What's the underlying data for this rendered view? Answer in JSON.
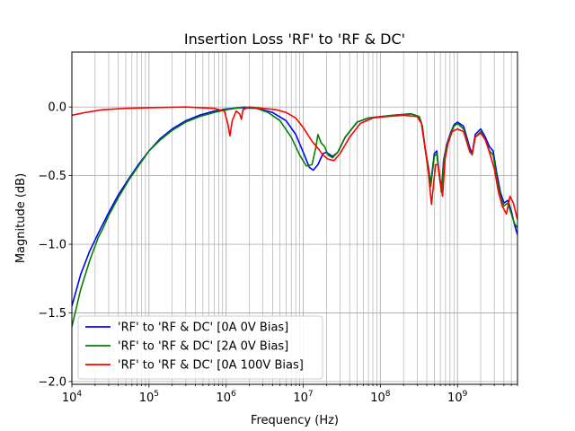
{
  "chart_data": {
    "type": "line",
    "title": "Insertion Loss 'RF' to 'RF & DC'",
    "xlabel": "Frequency (Hz)",
    "ylabel": "Magnitude (dB)",
    "xscale": "log",
    "xlim": [
      10000,
      6000000000
    ],
    "ylim": [
      -2.02,
      0.4
    ],
    "grid": true,
    "legend_position": "lower-left",
    "xticks": [
      {
        "value": 10000,
        "base": "10",
        "exp": "4"
      },
      {
        "value": 100000,
        "base": "10",
        "exp": "5"
      },
      {
        "value": 1000000,
        "base": "10",
        "exp": "6"
      },
      {
        "value": 10000000,
        "base": "10",
        "exp": "7"
      },
      {
        "value": 100000000,
        "base": "10",
        "exp": "8"
      },
      {
        "value": 1000000000,
        "base": "10",
        "exp": "9"
      }
    ],
    "yticks": [
      {
        "value": 0.0,
        "label": "0.0"
      },
      {
        "value": -0.5,
        "label": "−0.5"
      },
      {
        "value": -1.0,
        "label": "−1.0"
      },
      {
        "value": -1.5,
        "label": "−1.5"
      },
      {
        "value": -2.0,
        "label": "−2.0"
      }
    ],
    "series": [
      {
        "name": "'RF' to 'RF & DC' [0A 0V Bias]",
        "color": "#0000ff",
        "points": [
          [
            10000,
            -1.45
          ],
          [
            13000,
            -1.22
          ],
          [
            17000,
            -1.05
          ],
          [
            22000,
            -0.92
          ],
          [
            30000,
            -0.77
          ],
          [
            40000,
            -0.64
          ],
          [
            55000,
            -0.52
          ],
          [
            75000,
            -0.41
          ],
          [
            100000,
            -0.32
          ],
          [
            140000,
            -0.23
          ],
          [
            200000,
            -0.16
          ],
          [
            300000,
            -0.1
          ],
          [
            450000,
            -0.06
          ],
          [
            700000,
            -0.03
          ],
          [
            1000000,
            -0.015
          ],
          [
            1500000,
            -0.005
          ],
          [
            2500000,
            -0.01
          ],
          [
            4000000,
            -0.04
          ],
          [
            6000000,
            -0.1
          ],
          [
            8000000,
            -0.2
          ],
          [
            10000000,
            -0.33
          ],
          [
            12000000,
            -0.44
          ],
          [
            13500000,
            -0.46
          ],
          [
            15500000,
            -0.42
          ],
          [
            18000000,
            -0.34
          ],
          [
            20000000,
            -0.33
          ],
          [
            24000000,
            -0.36
          ],
          [
            28000000,
            -0.33
          ],
          [
            35000000,
            -0.22
          ],
          [
            50000000,
            -0.11
          ],
          [
            70000000,
            -0.08
          ],
          [
            100000000,
            -0.07
          ],
          [
            150000000,
            -0.06
          ],
          [
            250000000,
            -0.05
          ],
          [
            320000000,
            -0.07
          ],
          [
            350000000,
            -0.14
          ],
          [
            380000000,
            -0.3
          ],
          [
            420000000,
            -0.44
          ],
          [
            450000000,
            -0.56
          ],
          [
            500000000,
            -0.34
          ],
          [
            540000000,
            -0.32
          ],
          [
            570000000,
            -0.45
          ],
          [
            620000000,
            -0.6
          ],
          [
            660000000,
            -0.39
          ],
          [
            720000000,
            -0.28
          ],
          [
            800000000,
            -0.2
          ],
          [
            900000000,
            -0.13
          ],
          [
            1000000000,
            -0.11
          ],
          [
            1200000000,
            -0.14
          ],
          [
            1450000000,
            -0.3
          ],
          [
            1550000000,
            -0.34
          ],
          [
            1700000000,
            -0.2
          ],
          [
            2000000000,
            -0.16
          ],
          [
            2300000000,
            -0.22
          ],
          [
            2600000000,
            -0.29
          ],
          [
            2900000000,
            -0.32
          ],
          [
            3200000000,
            -0.47
          ],
          [
            3600000000,
            -0.62
          ],
          [
            4000000000,
            -0.7
          ],
          [
            4500000000,
            -0.68
          ],
          [
            5000000000,
            -0.76
          ],
          [
            5500000000,
            -0.86
          ],
          [
            6000000000,
            -0.93
          ]
        ]
      },
      {
        "name": "'RF' to 'RF & DC' [2A 0V Bias]",
        "color": "#008000",
        "points": [
          [
            10000,
            -1.6
          ],
          [
            13000,
            -1.33
          ],
          [
            17000,
            -1.12
          ],
          [
            22000,
            -0.95
          ],
          [
            25000,
            -0.89
          ],
          [
            30000,
            -0.79
          ],
          [
            40000,
            -0.66
          ],
          [
            55000,
            -0.53
          ],
          [
            75000,
            -0.42
          ],
          [
            100000,
            -0.32
          ],
          [
            140000,
            -0.24
          ],
          [
            200000,
            -0.17
          ],
          [
            300000,
            -0.11
          ],
          [
            450000,
            -0.07
          ],
          [
            700000,
            -0.04
          ],
          [
            1000000,
            -0.02
          ],
          [
            1300000,
            -0.01
          ],
          [
            1700000,
            0.0
          ],
          [
            2500000,
            -0.01
          ],
          [
            3500000,
            -0.04
          ],
          [
            5000000,
            -0.1
          ],
          [
            7000000,
            -0.22
          ],
          [
            9000000,
            -0.35
          ],
          [
            11000000,
            -0.43
          ],
          [
            13000000,
            -0.42
          ],
          [
            14500000,
            -0.3
          ],
          [
            15500000,
            -0.2
          ],
          [
            17000000,
            -0.26
          ],
          [
            19000000,
            -0.29
          ],
          [
            21000000,
            -0.35
          ],
          [
            24000000,
            -0.37
          ],
          [
            28000000,
            -0.33
          ],
          [
            35000000,
            -0.22
          ],
          [
            50000000,
            -0.11
          ],
          [
            70000000,
            -0.08
          ],
          [
            100000000,
            -0.07
          ],
          [
            150000000,
            -0.06
          ],
          [
            250000000,
            -0.05
          ],
          [
            320000000,
            -0.07
          ],
          [
            350000000,
            -0.14
          ],
          [
            380000000,
            -0.3
          ],
          [
            420000000,
            -0.44
          ],
          [
            450000000,
            -0.58
          ],
          [
            500000000,
            -0.36
          ],
          [
            540000000,
            -0.34
          ],
          [
            570000000,
            -0.47
          ],
          [
            620000000,
            -0.62
          ],
          [
            660000000,
            -0.4
          ],
          [
            720000000,
            -0.29
          ],
          [
            800000000,
            -0.21
          ],
          [
            900000000,
            -0.14
          ],
          [
            1000000000,
            -0.12
          ],
          [
            1200000000,
            -0.16
          ],
          [
            1450000000,
            -0.32
          ],
          [
            1550000000,
            -0.35
          ],
          [
            1700000000,
            -0.22
          ],
          [
            2000000000,
            -0.18
          ],
          [
            2300000000,
            -0.24
          ],
          [
            2600000000,
            -0.32
          ],
          [
            2900000000,
            -0.35
          ],
          [
            3200000000,
            -0.5
          ],
          [
            3600000000,
            -0.65
          ],
          [
            4000000000,
            -0.72
          ],
          [
            4500000000,
            -0.7
          ],
          [
            5000000000,
            -0.78
          ],
          [
            5500000000,
            -0.85
          ],
          [
            6000000000,
            -0.88
          ]
        ]
      },
      {
        "name": "'RF' to 'RF & DC' [0A 100V Bias]",
        "color": "#ff0000",
        "points": [
          [
            10000,
            -0.06
          ],
          [
            15000,
            -0.04
          ],
          [
            25000,
            -0.02
          ],
          [
            50000,
            -0.01
          ],
          [
            100000,
            -0.005
          ],
          [
            300000,
            0.0
          ],
          [
            700000,
            -0.01
          ],
          [
            950000,
            -0.03
          ],
          [
            1050000,
            -0.12
          ],
          [
            1120000,
            -0.21
          ],
          [
            1200000,
            -0.1
          ],
          [
            1350000,
            -0.03
          ],
          [
            1500000,
            -0.05
          ],
          [
            1580000,
            -0.09
          ],
          [
            1650000,
            -0.02
          ],
          [
            2000000,
            0.0
          ],
          [
            3000000,
            -0.01
          ],
          [
            4500000,
            -0.02
          ],
          [
            6000000,
            -0.04
          ],
          [
            8000000,
            -0.08
          ],
          [
            10000000,
            -0.15
          ],
          [
            13000000,
            -0.25
          ],
          [
            16000000,
            -0.31
          ],
          [
            18000000,
            -0.35
          ],
          [
            21000000,
            -0.38
          ],
          [
            25000000,
            -0.39
          ],
          [
            30000000,
            -0.34
          ],
          [
            40000000,
            -0.22
          ],
          [
            55000000,
            -0.12
          ],
          [
            80000000,
            -0.08
          ],
          [
            120000000,
            -0.07
          ],
          [
            200000000,
            -0.06
          ],
          [
            300000000,
            -0.07
          ],
          [
            340000000,
            -0.12
          ],
          [
            380000000,
            -0.3
          ],
          [
            420000000,
            -0.48
          ],
          [
            460000000,
            -0.71
          ],
          [
            520000000,
            -0.42
          ],
          [
            560000000,
            -0.42
          ],
          [
            600000000,
            -0.55
          ],
          [
            640000000,
            -0.65
          ],
          [
            690000000,
            -0.38
          ],
          [
            750000000,
            -0.27
          ],
          [
            850000000,
            -0.18
          ],
          [
            1000000000,
            -0.16
          ],
          [
            1200000000,
            -0.18
          ],
          [
            1450000000,
            -0.33
          ],
          [
            1550000000,
            -0.34
          ],
          [
            1700000000,
            -0.22
          ],
          [
            2000000000,
            -0.19
          ],
          [
            2300000000,
            -0.24
          ],
          [
            2600000000,
            -0.33
          ],
          [
            3000000000,
            -0.45
          ],
          [
            3400000000,
            -0.62
          ],
          [
            3800000000,
            -0.72
          ],
          [
            4300000000,
            -0.78
          ],
          [
            4800000000,
            -0.65
          ],
          [
            5300000000,
            -0.7
          ],
          [
            6000000000,
            -0.82
          ]
        ]
      }
    ]
  }
}
